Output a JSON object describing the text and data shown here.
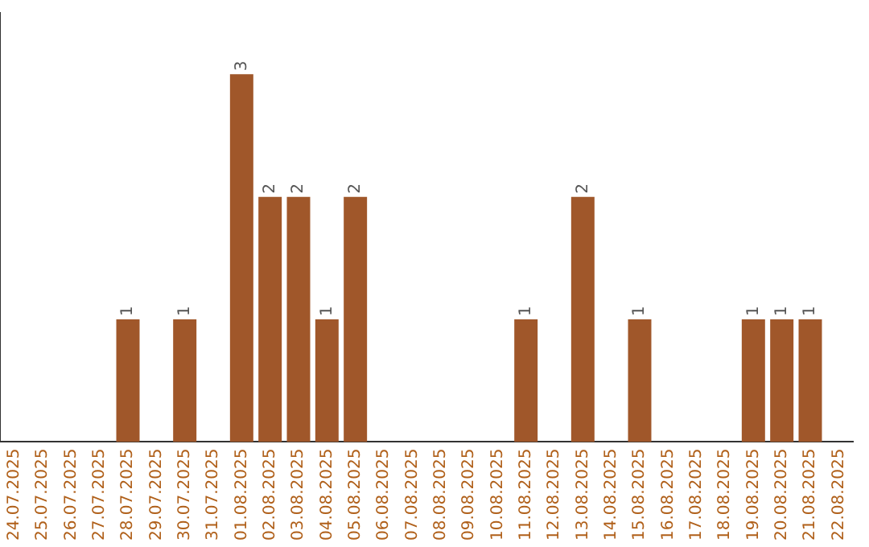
{
  "chart_data": {
    "type": "bar",
    "categories": [
      "24.07.2025",
      "25.07.2025",
      "26.07.2025",
      "27.07.2025",
      "28.07.2025",
      "29.07.2025",
      "30.07.2025",
      "31.07.2025",
      "01.08.2025",
      "02.08.2025",
      "03.08.2025",
      "04.08.2025",
      "05.08.2025",
      "06.08.2025",
      "07.08.2025",
      "08.08.2025",
      "09.08.2025",
      "10.08.2025",
      "11.08.2025",
      "12.08.2025",
      "13.08.2025",
      "14.08.2025",
      "15.08.2025",
      "16.08.2025",
      "17.08.2025",
      "18.08.2025",
      "19.08.2025",
      "20.08.2025",
      "21.08.2025",
      "22.08.2025"
    ],
    "values": [
      0,
      0,
      0,
      0,
      1,
      0,
      1,
      0,
      3,
      2,
      2,
      1,
      2,
      0,
      0,
      0,
      0,
      0,
      1,
      0,
      2,
      0,
      1,
      0,
      0,
      0,
      1,
      1,
      1,
      0
    ],
    "value_labels": [
      null,
      null,
      null,
      null,
      "1",
      null,
      "1",
      null,
      "3",
      "2",
      "2",
      "1",
      "2",
      null,
      null,
      null,
      null,
      null,
      "1",
      null,
      "2",
      null,
      "1",
      null,
      null,
      null,
      "1",
      "1",
      "1",
      null
    ],
    "color": "#a0572a",
    "tick_labels": "x",
    "grid": false,
    "legend": false
  }
}
